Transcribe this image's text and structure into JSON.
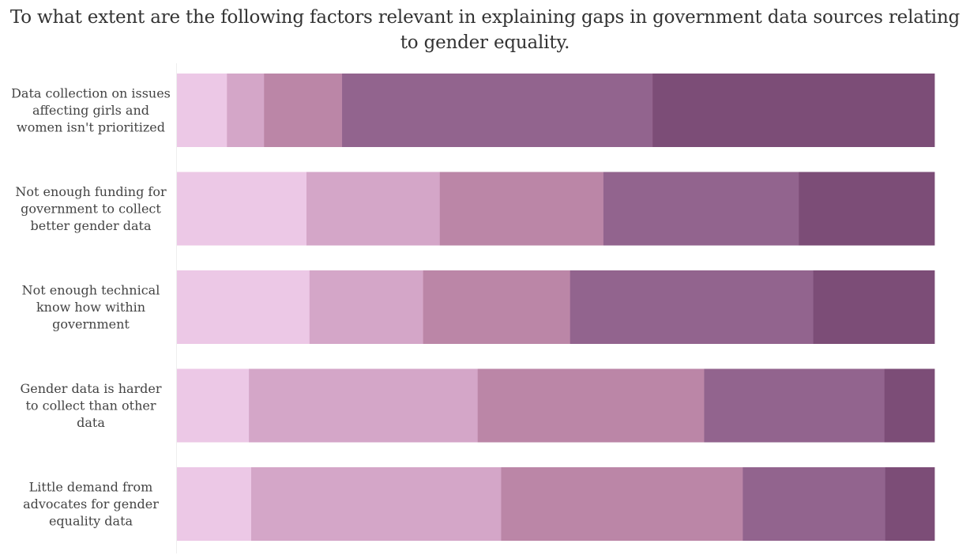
{
  "chart_data": {
    "type": "bar",
    "orientation": "horizontal",
    "stacked": true,
    "normalized": true,
    "title": "To what extent are the following factors relevant in explaining gaps in government data sources relating to gender equality.",
    "title_lines": [
      "To what extent are the following factors relevant in explaining gaps in government data sources relating",
      "to gender equality."
    ],
    "categories": [
      [
        "Data collection on issues",
        "affecting girls and",
        "women isn't prioritized"
      ],
      [
        "Not enough funding for",
        "government to collect",
        "better gender data"
      ],
      [
        "Not enough technical",
        "know how within",
        "government"
      ],
      [
        "Gender data is harder",
        "to collect than other",
        "data"
      ],
      [
        "Little demand from",
        "advocates for gender",
        "equality data"
      ]
    ],
    "xlim": [
      0,
      100
    ],
    "grid": false,
    "legend": "none",
    "series": [
      {
        "values": [
          6.6,
          17.1,
          17.5,
          9.5,
          9.8
        ]
      },
      {
        "values": [
          4.9,
          17.6,
          15.0,
          30.2,
          33.0
        ]
      },
      {
        "values": [
          10.3,
          21.6,
          19.4,
          29.9,
          31.9
        ]
      },
      {
        "values": [
          41.0,
          25.8,
          32.1,
          23.8,
          18.8
        ]
      },
      {
        "values": [
          37.2,
          17.9,
          16.0,
          6.6,
          6.5
        ]
      }
    ],
    "colors": [
      "#ecc8e6",
      "#d4a6c8",
      "#bb86a7",
      "#92648e",
      "#7c4d77"
    ]
  }
}
